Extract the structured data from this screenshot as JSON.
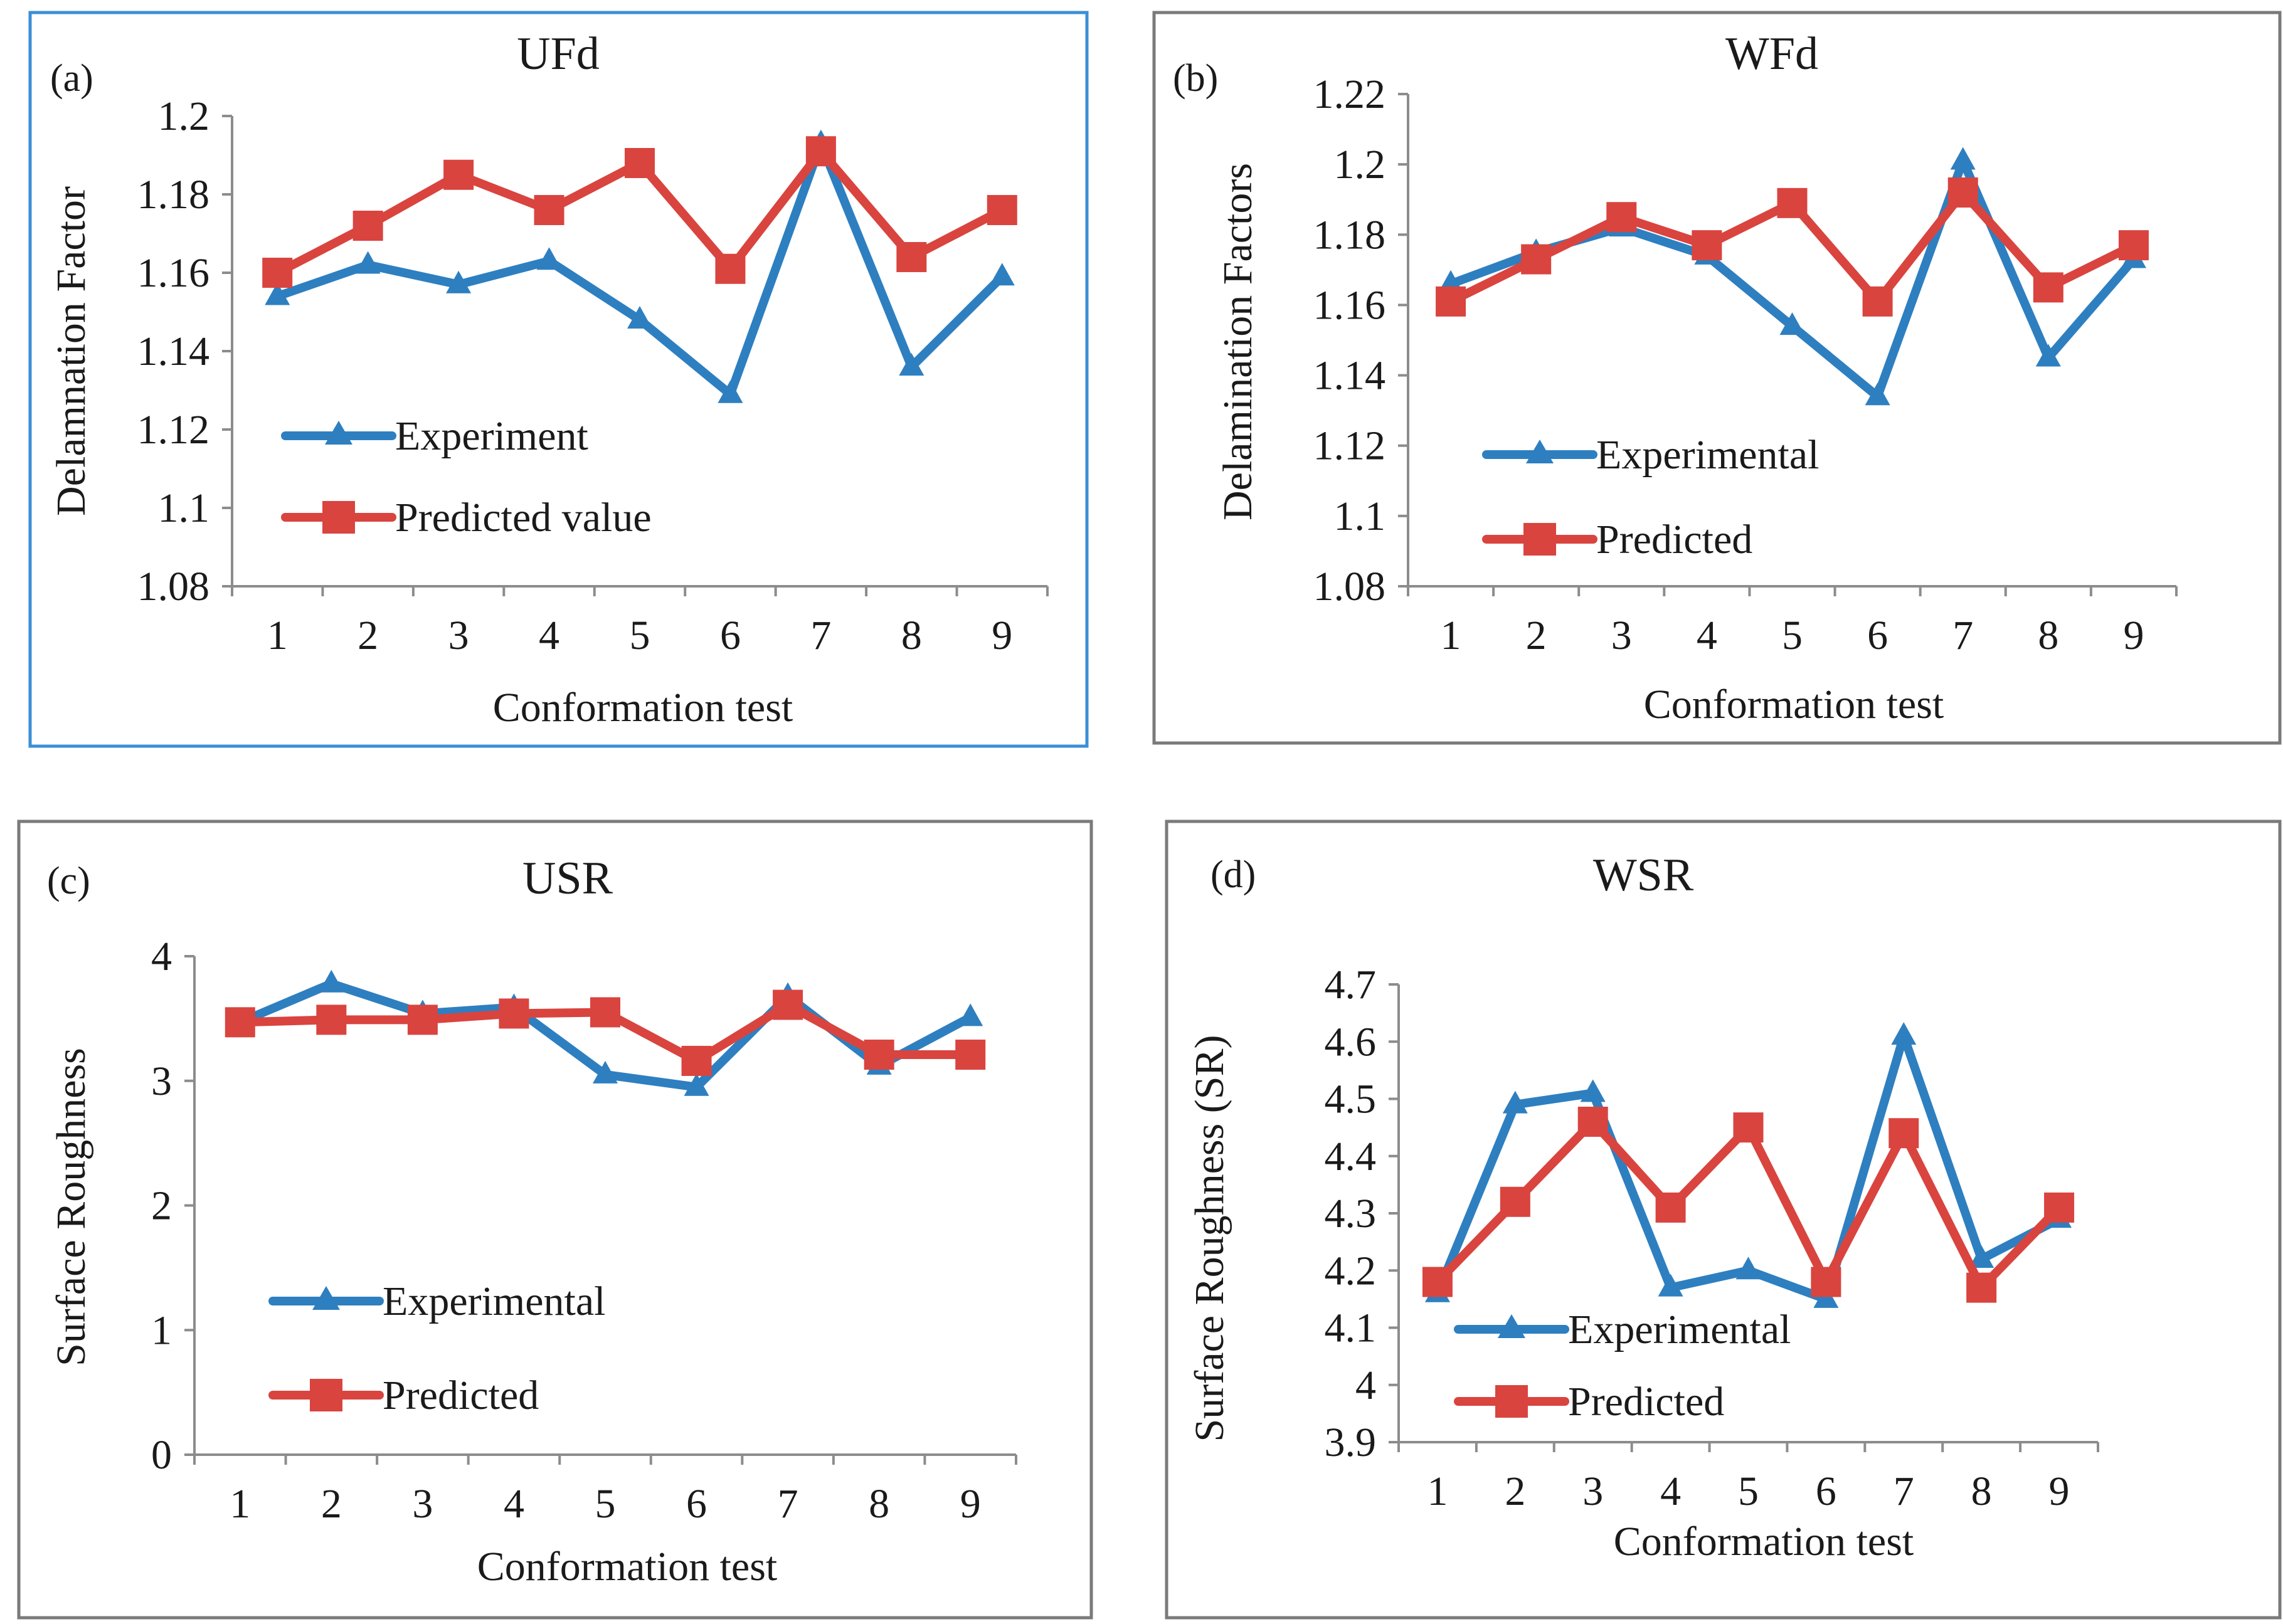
{
  "colors": {
    "experimental": "#2e7fc0",
    "predicted": "#d9443f",
    "frame_a": "#3b8fd6",
    "frame_default": "#7a7a7a"
  },
  "chart_data": [
    {
      "type": "line",
      "tag": "(a)",
      "title": "UFd",
      "xlabel": "Conformation test",
      "ylabel": "Delamnation Factor",
      "categories": [
        "1",
        "2",
        "3",
        "4",
        "5",
        "6",
        "7",
        "8",
        "9"
      ],
      "ylim": [
        1.08,
        1.2
      ],
      "yticks": [
        1.08,
        1.1,
        1.12,
        1.14,
        1.16,
        1.18,
        1.2
      ],
      "ytick_labels": [
        "1.08",
        "1.1",
        "1.12",
        "1.14",
        "1.16",
        "1.18",
        "1.2"
      ],
      "legend_position": "bottom-left",
      "series": [
        {
          "name": "Experiment",
          "marker": "triangle",
          "values": [
            1.154,
            1.162,
            1.157,
            1.163,
            1.148,
            1.129,
            1.193,
            1.136,
            1.159
          ]
        },
        {
          "name": "Predicted value",
          "marker": "square",
          "values": [
            1.16,
            1.172,
            1.185,
            1.176,
            1.188,
            1.161,
            1.191,
            1.164,
            1.176
          ]
        }
      ]
    },
    {
      "type": "line",
      "tag": "(b)",
      "title": "WFd",
      "xlabel": "Conformation test",
      "ylabel": "Delamination Factors",
      "categories": [
        "1",
        "2",
        "3",
        "4",
        "5",
        "6",
        "7",
        "8",
        "9"
      ],
      "ylim": [
        1.08,
        1.22
      ],
      "yticks": [
        1.08,
        1.1,
        1.12,
        1.14,
        1.16,
        1.18,
        1.2,
        1.22
      ],
      "ytick_labels": [
        "1.08",
        "1.1",
        "1.12",
        "1.14",
        "1.16",
        "1.18",
        "1.2",
        "1.22"
      ],
      "legend_position": "bottom-left",
      "series": [
        {
          "name": "Experimental",
          "marker": "triangle",
          "values": [
            1.166,
            1.175,
            1.182,
            1.174,
            1.154,
            1.134,
            1.201,
            1.145,
            1.173
          ]
        },
        {
          "name": "Predicted",
          "marker": "square",
          "values": [
            1.161,
            1.173,
            1.185,
            1.177,
            1.189,
            1.161,
            1.192,
            1.165,
            1.177
          ]
        }
      ]
    },
    {
      "type": "line",
      "tag": "(c)",
      "title": "USR",
      "xlabel": "Conformation test",
      "ylabel": "Surface Roughness",
      "categories": [
        "1",
        "2",
        "3",
        "4",
        "5",
        "6",
        "7",
        "8",
        "9"
      ],
      "ylim": [
        0,
        4
      ],
      "yticks": [
        0,
        1,
        2,
        3,
        4
      ],
      "ytick_labels": [
        "0",
        "1",
        "2",
        "3",
        "4"
      ],
      "legend_position": "bottom-left",
      "series": [
        {
          "name": "Experimental",
          "marker": "triangle",
          "values": [
            3.47,
            3.78,
            3.54,
            3.59,
            3.05,
            2.95,
            3.68,
            3.12,
            3.51
          ]
        },
        {
          "name": "Predicted",
          "marker": "square",
          "values": [
            3.47,
            3.49,
            3.49,
            3.54,
            3.55,
            3.16,
            3.61,
            3.21,
            3.21
          ]
        }
      ]
    },
    {
      "type": "line",
      "tag": "(d)",
      "title": "WSR",
      "xlabel": "Conformation test",
      "ylabel": "Surface Roughness (SR)",
      "categories": [
        "1",
        "2",
        "3",
        "4",
        "5",
        "6",
        "7",
        "8",
        "9"
      ],
      "ylim": [
        3.9,
        4.7
      ],
      "yticks": [
        3.9,
        4.0,
        4.1,
        4.2,
        4.3,
        4.4,
        4.5,
        4.6,
        4.7
      ],
      "ytick_labels": [
        "3.9",
        "4",
        "4.1",
        "4.2",
        "4.3",
        "4.4",
        "4.5",
        "4.6",
        "4.7"
      ],
      "legend_position": "bottom-left",
      "series": [
        {
          "name": "Experimental",
          "marker": "triangle",
          "values": [
            4.16,
            4.49,
            4.51,
            4.17,
            4.2,
            4.15,
            4.61,
            4.22,
            4.29
          ]
        },
        {
          "name": "Predicted",
          "marker": "square",
          "values": [
            4.18,
            4.32,
            4.46,
            4.31,
            4.45,
            4.18,
            4.44,
            4.17,
            4.31
          ]
        }
      ]
    }
  ]
}
